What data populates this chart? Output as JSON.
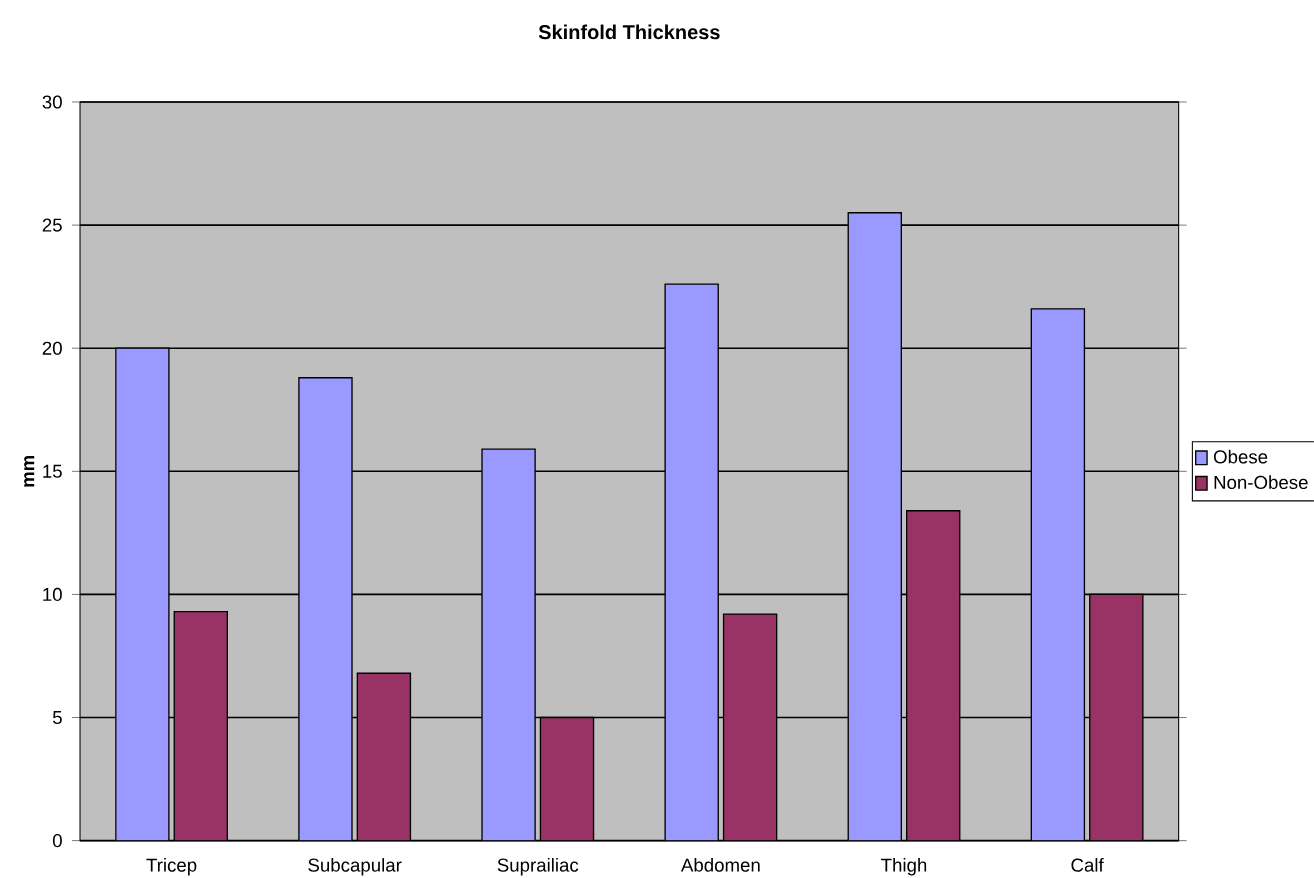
{
  "chart_data": {
    "type": "bar",
    "title": "Skinfold Thickness",
    "ylabel": "mm",
    "categories": [
      "Tricep",
      "Subcapular",
      "Suprailiac",
      "Abdomen",
      "Thigh",
      "Calf"
    ],
    "series": [
      {
        "name": "Obese",
        "color": "#9999ff",
        "values": [
          20,
          18.8,
          15.9,
          22.6,
          25.5,
          21.6
        ]
      },
      {
        "name": "Non-Obese",
        "color": "#993366",
        "values": [
          9.3,
          6.8,
          5.0,
          9.2,
          13.4,
          10.0
        ]
      }
    ],
    "ylim": [
      0,
      30
    ],
    "yticks": [
      0,
      5,
      10,
      15,
      20,
      25,
      30
    ],
    "grid": "y",
    "legend": "right"
  }
}
